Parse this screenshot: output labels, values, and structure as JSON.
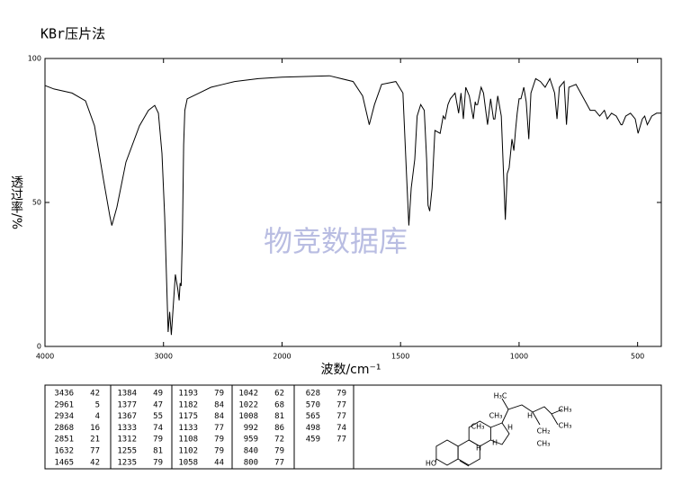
{
  "chart_data": {
    "type": "line",
    "title": "KBr压片法",
    "x_label": "波数/cm⁻¹",
    "y_label": "透过率/%",
    "watermark": "物竞数据库",
    "color": "#000000",
    "xlim": [
      4000,
      400
    ],
    "xticks": [
      4000,
      3000,
      2000,
      1500,
      1000,
      500
    ],
    "ylim": [
      0,
      100
    ],
    "yticks": [
      0,
      50,
      100
    ],
    "x": [
      4000,
      3924,
      3772,
      3658,
      3582,
      3506,
      3453,
      3436,
      3393,
      3317,
      3203,
      3127,
      3074,
      3043,
      3013,
      2990,
      2961,
      2948,
      2934,
      2900,
      2880,
      2868,
      2860,
      2851,
      2840,
      2830,
      2820,
      2800,
      2700,
      2600,
      2500,
      2400,
      2200,
      2000,
      1800,
      1700,
      1660,
      1632,
      1610,
      1580,
      1520,
      1490,
      1475,
      1465,
      1455,
      1440,
      1430,
      1415,
      1400,
      1390,
      1384,
      1377,
      1367,
      1355,
      1333,
      1320,
      1312,
      1300,
      1290,
      1270,
      1255,
      1245,
      1235,
      1225,
      1210,
      1193,
      1185,
      1182,
      1175,
      1160,
      1150,
      1133,
      1120,
      1108,
      1102,
      1090,
      1075,
      1058,
      1050,
      1042,
      1030,
      1022,
      1015,
      1008,
      1000,
      992,
      980,
      970,
      959,
      950,
      930,
      910,
      890,
      870,
      850,
      840,
      830,
      810,
      800,
      790,
      760,
      720,
      700,
      680,
      660,
      640,
      628,
      610,
      590,
      570,
      565,
      550,
      530,
      510,
      498,
      480,
      470,
      459,
      440,
      420,
      400
    ],
    "values": [
      90.6,
      89.4,
      88,
      85.3,
      76.6,
      57.8,
      45.3,
      42,
      48.4,
      64,
      76.6,
      82,
      83.7,
      81,
      67,
      45,
      5,
      12,
      4,
      25,
      20,
      16,
      22,
      21,
      40,
      70,
      82,
      86,
      88,
      90,
      91,
      92,
      93,
      93.5,
      94,
      92,
      87,
      77,
      84,
      91,
      92,
      88,
      60,
      42,
      55,
      65,
      80,
      84,
      82,
      65,
      49,
      47,
      55,
      75,
      74,
      80,
      79,
      84,
      86,
      88,
      81,
      88,
      79,
      90,
      87,
      79,
      85,
      84,
      84,
      90,
      88,
      77,
      86,
      79,
      79,
      87,
      80,
      44,
      60,
      62,
      72,
      68,
      75,
      81,
      86,
      86,
      90,
      85,
      72,
      88,
      93,
      92,
      90,
      93,
      88,
      79,
      90,
      92,
      77,
      90,
      91,
      85,
      82,
      82,
      80,
      82,
      79,
      81,
      80,
      77,
      77,
      80,
      81,
      79,
      74,
      79,
      80,
      77,
      80,
      81,
      81
    ]
  },
  "peak_table": [
    [
      [
        3436,
        42
      ],
      [
        2961,
        5
      ],
      [
        2934,
        4
      ],
      [
        2868,
        16
      ],
      [
        2851,
        21
      ],
      [
        1632,
        77
      ],
      [
        1465,
        42
      ]
    ],
    [
      [
        1384,
        49
      ],
      [
        1377,
        47
      ],
      [
        1367,
        55
      ],
      [
        1333,
        74
      ],
      [
        1312,
        79
      ],
      [
        1255,
        81
      ],
      [
        1235,
        79
      ]
    ],
    [
      [
        1193,
        79
      ],
      [
        1182,
        84
      ],
      [
        1175,
        84
      ],
      [
        1133,
        77
      ],
      [
        1108,
        79
      ],
      [
        1102,
        79
      ],
      [
        1058,
        44
      ]
    ],
    [
      [
        1042,
        62
      ],
      [
        1022,
        68
      ],
      [
        1008,
        81
      ],
      [
        992,
        86
      ],
      [
        959,
        72
      ],
      [
        840,
        79
      ],
      [
        800,
        77
      ]
    ],
    [
      [
        628,
        79
      ],
      [
        570,
        77
      ],
      [
        565,
        77
      ],
      [
        498,
        74
      ],
      [
        459,
        77
      ]
    ]
  ],
  "structure_labels": [
    "H₃C",
    "CH₃",
    "CH₃",
    "CH₃",
    "CH₃",
    "H",
    "H",
    "H",
    "H",
    "CH₂",
    "CH₃",
    "HO"
  ]
}
